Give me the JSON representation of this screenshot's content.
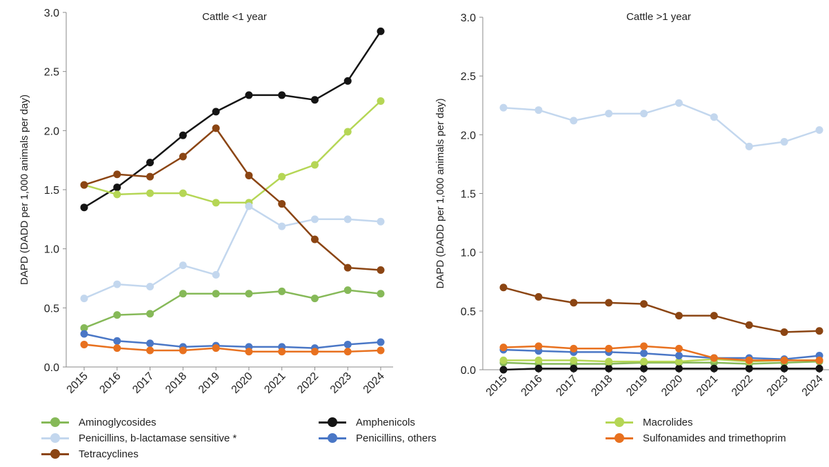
{
  "chart_data": [
    {
      "type": "line",
      "title": "Cattle <1 year",
      "ylabel": "DAPD (DADD per 1,000 animals per day)",
      "xlabel": "",
      "ylim": [
        0,
        3.0
      ],
      "yticks": [
        "0.0",
        "0.5",
        "1.0",
        "1.5",
        "2.0",
        "2.5",
        "3.0"
      ],
      "categories": [
        "2015",
        "2016",
        "2017",
        "2018",
        "2019",
        "2020",
        "2021",
        "2022",
        "2023",
        "2024"
      ],
      "grid": false,
      "series": [
        {
          "name": "Aminoglycosides",
          "color": "#86b958",
          "values": [
            0.33,
            0.44,
            0.45,
            0.62,
            0.62,
            0.62,
            0.64,
            0.58,
            0.65,
            0.62
          ]
        },
        {
          "name": "Amphenicols",
          "color": "#141414",
          "values": [
            1.35,
            1.52,
            1.73,
            1.96,
            2.16,
            2.3,
            2.3,
            2.26,
            2.42,
            2.84
          ]
        },
        {
          "name": "Macrolides",
          "color": "#b5d655",
          "values": [
            1.54,
            1.46,
            1.47,
            1.47,
            1.39,
            1.39,
            1.61,
            1.71,
            1.99,
            2.25
          ]
        },
        {
          "name": "Penicillins, b-lactamase sensitive *",
          "color": "#c3d7ee",
          "values": [
            0.58,
            0.7,
            0.68,
            0.86,
            0.78,
            1.36,
            1.19,
            1.25,
            1.25,
            1.23
          ]
        },
        {
          "name": "Penicillins, others",
          "color": "#4a77c6",
          "values": [
            0.28,
            0.22,
            0.2,
            0.17,
            0.18,
            0.17,
            0.17,
            0.16,
            0.19,
            0.21
          ]
        },
        {
          "name": "Sulfonamides and trimethoprim",
          "color": "#e8711f",
          "values": [
            0.19,
            0.16,
            0.14,
            0.14,
            0.16,
            0.13,
            0.13,
            0.13,
            0.13,
            0.14
          ]
        },
        {
          "name": "Tetracyclines",
          "color": "#8b4513",
          "values": [
            1.54,
            1.63,
            1.61,
            1.78,
            2.02,
            1.62,
            1.38,
            1.08,
            0.84,
            0.82
          ]
        }
      ]
    },
    {
      "type": "line",
      "title": "Cattle >1 year",
      "ylabel": "DAPD (DADD per 1,000 animals per day)",
      "xlabel": "",
      "ylim": [
        0,
        3.0
      ],
      "yticks": [
        "0.0",
        "0.5",
        "1.0",
        "1.5",
        "2.0",
        "2.5",
        "3.0"
      ],
      "categories": [
        "2015",
        "2016",
        "2017",
        "2018",
        "2019",
        "2020",
        "2021",
        "2022",
        "2023",
        "2024"
      ],
      "grid": false,
      "series": [
        {
          "name": "Aminoglycosides",
          "color": "#86b958",
          "values": [
            0.06,
            0.05,
            0.05,
            0.05,
            0.06,
            0.06,
            0.06,
            0.05,
            0.06,
            0.07
          ]
        },
        {
          "name": "Amphenicols",
          "color": "#141414",
          "values": [
            0.0,
            0.01,
            0.01,
            0.01,
            0.01,
            0.01,
            0.01,
            0.01,
            0.01,
            0.01
          ]
        },
        {
          "name": "Macrolides",
          "color": "#b5d655",
          "values": [
            0.08,
            0.08,
            0.08,
            0.07,
            0.07,
            0.07,
            0.09,
            0.07,
            0.08,
            0.08
          ]
        },
        {
          "name": "Penicillins, b-lactamase sensitive *",
          "color": "#c3d7ee",
          "values": [
            2.23,
            2.21,
            2.12,
            2.18,
            2.18,
            2.27,
            2.15,
            1.9,
            1.94,
            2.04
          ]
        },
        {
          "name": "Penicillins, others",
          "color": "#4a77c6",
          "values": [
            0.17,
            0.16,
            0.15,
            0.15,
            0.14,
            0.12,
            0.1,
            0.1,
            0.09,
            0.12
          ]
        },
        {
          "name": "Sulfonamides and trimethoprim",
          "color": "#e8711f",
          "values": [
            0.19,
            0.2,
            0.18,
            0.18,
            0.2,
            0.18,
            0.1,
            0.08,
            0.08,
            0.08
          ]
        },
        {
          "name": "Tetracyclines",
          "color": "#8b4513",
          "values": [
            0.7,
            0.62,
            0.57,
            0.57,
            0.56,
            0.46,
            0.46,
            0.38,
            0.32,
            0.33
          ]
        }
      ]
    }
  ],
  "legend": {
    "items": [
      {
        "label": "Aminoglycosides",
        "color": "#86b958"
      },
      {
        "label": "Amphenicols",
        "color": "#141414"
      },
      {
        "label": "Macrolides",
        "color": "#b5d655"
      },
      {
        "label": "Penicillins, b-lactamase sensitive *",
        "color": "#c3d7ee"
      },
      {
        "label": "Penicillins, others",
        "color": "#4a77c6"
      },
      {
        "label": "Sulfonamides and trimethoprim",
        "color": "#e8711f"
      },
      {
        "label": "Tetracyclines",
        "color": "#8b4513"
      }
    ]
  }
}
